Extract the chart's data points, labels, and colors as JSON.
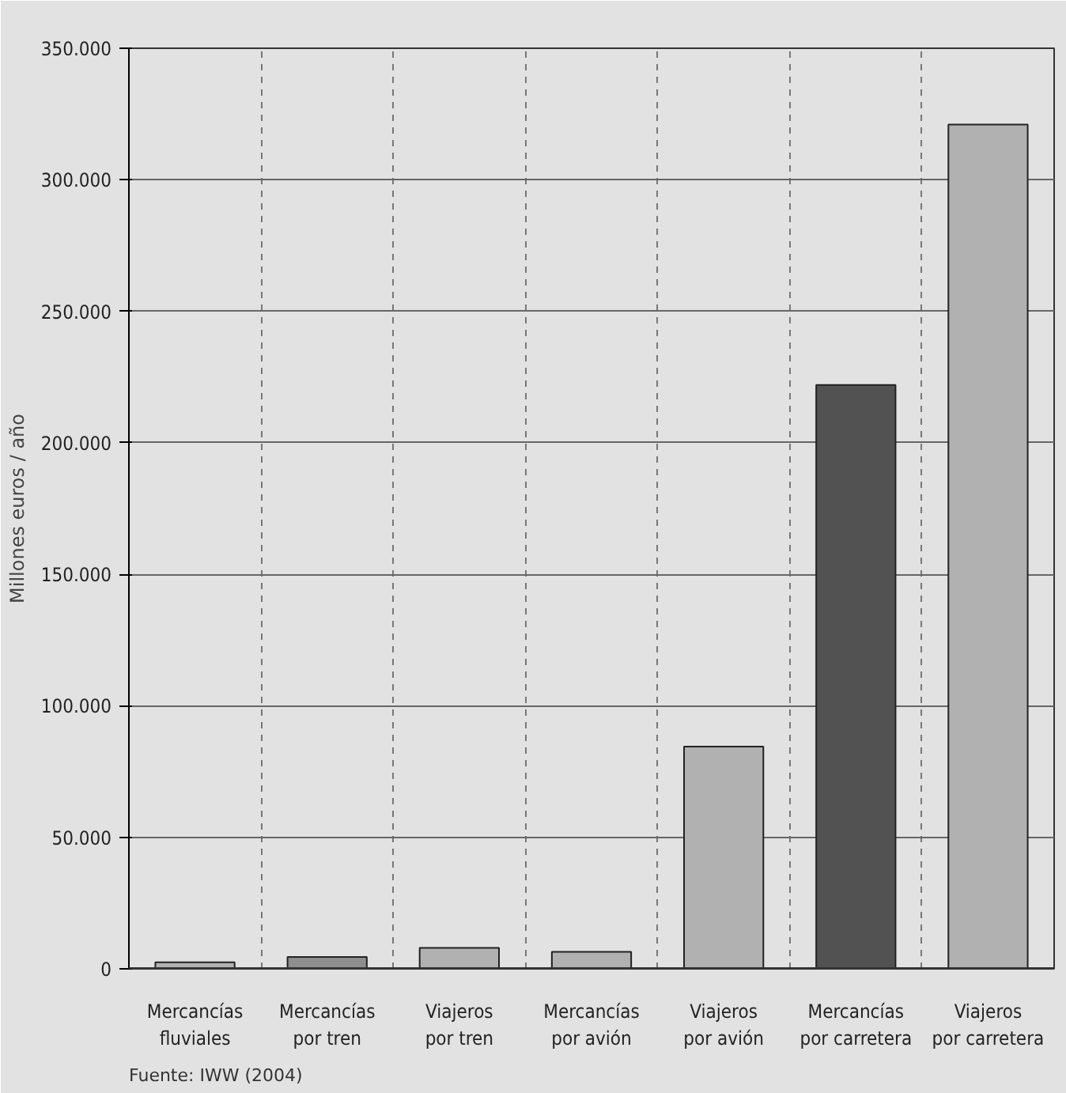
{
  "chart_data": {
    "type": "bar",
    "categories": [
      "Mercancías\nfluviales",
      "Mercancías\npor tren",
      "Viajeros\npor tren",
      "Mercancías\npor avión",
      "Viajeros\npor avión",
      "Mercancías\npor carretera",
      "Viajeros\npor carretera"
    ],
    "values": [
      2500,
      4500,
      8000,
      6500,
      84500,
      222000,
      321000
    ],
    "colors": [
      "#b1b1b1",
      "#8e8e8e",
      "#b1b1b1",
      "#b1b1b1",
      "#b1b1b1",
      "#525252",
      "#b1b1b1"
    ],
    "ylabel": "Millones euros / año",
    "ylim": [
      0,
      350000
    ],
    "yticks": [
      {
        "value": 0,
        "label": "0"
      },
      {
        "value": 50000,
        "label": "50.000"
      },
      {
        "value": 100000,
        "label": "100.000"
      },
      {
        "value": 150000,
        "label": "150.000"
      },
      {
        "value": 200000,
        "label": "200.000"
      },
      {
        "value": 250000,
        "label": "250.000"
      },
      {
        "value": 300000,
        "label": "300.000"
      },
      {
        "value": 350000,
        "label": "350.000"
      }
    ],
    "grid": true,
    "annotations": [
      "Fuente: IWW (2004)"
    ]
  }
}
